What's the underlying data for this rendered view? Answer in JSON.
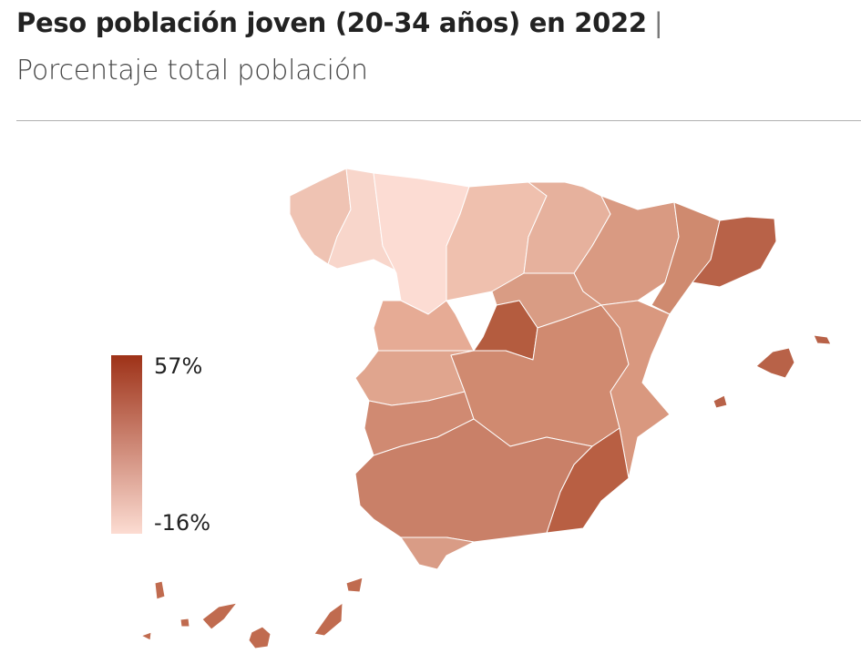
{
  "header": {
    "title": "Peso población joven (20-34 años) en 2022",
    "separator": "|",
    "subtitle": "Porcentaje total población"
  },
  "legend": {
    "max_label": "57%",
    "min_label": "-16%",
    "max_value": 57,
    "min_value": -16,
    "color_max": "#9e3218",
    "color_min": "#fcdcd2"
  },
  "map": {
    "regions": [
      {
        "name": "galicia-west",
        "color": "#efc3b3"
      },
      {
        "name": "lugo-ourense",
        "color": "#f8d6cb"
      },
      {
        "name": "asturias-leon-zamora",
        "color": "#fcdcd3"
      },
      {
        "name": "castilla-north",
        "color": "#efc0ae"
      },
      {
        "name": "pais-vasco-navarra-rioja",
        "color": "#e6b19d"
      },
      {
        "name": "aragon",
        "color": "#d99a82"
      },
      {
        "name": "cataluna-west",
        "color": "#cf8a6f"
      },
      {
        "name": "barcelona-girona",
        "color": "#b86248"
      },
      {
        "name": "salamanca-avila",
        "color": "#e6ab95"
      },
      {
        "name": "segovia-guadalajara-soria",
        "color": "#d99c84"
      },
      {
        "name": "madrid",
        "color": "#b45c3f"
      },
      {
        "name": "caceres",
        "color": "#e0a58e"
      },
      {
        "name": "badajoz",
        "color": "#d08a72"
      },
      {
        "name": "castilla-la-mancha",
        "color": "#d08a70"
      },
      {
        "name": "comunidad-valenciana",
        "color": "#d9987f"
      },
      {
        "name": "murcia-almeria",
        "color": "#b85f43"
      },
      {
        "name": "andalucia",
        "color": "#c98068"
      },
      {
        "name": "cadiz-malaga",
        "color": "#d99c86"
      },
      {
        "name": "baleares",
        "color": "#b86248"
      },
      {
        "name": "canarias",
        "color": "#c06b4f"
      }
    ]
  }
}
